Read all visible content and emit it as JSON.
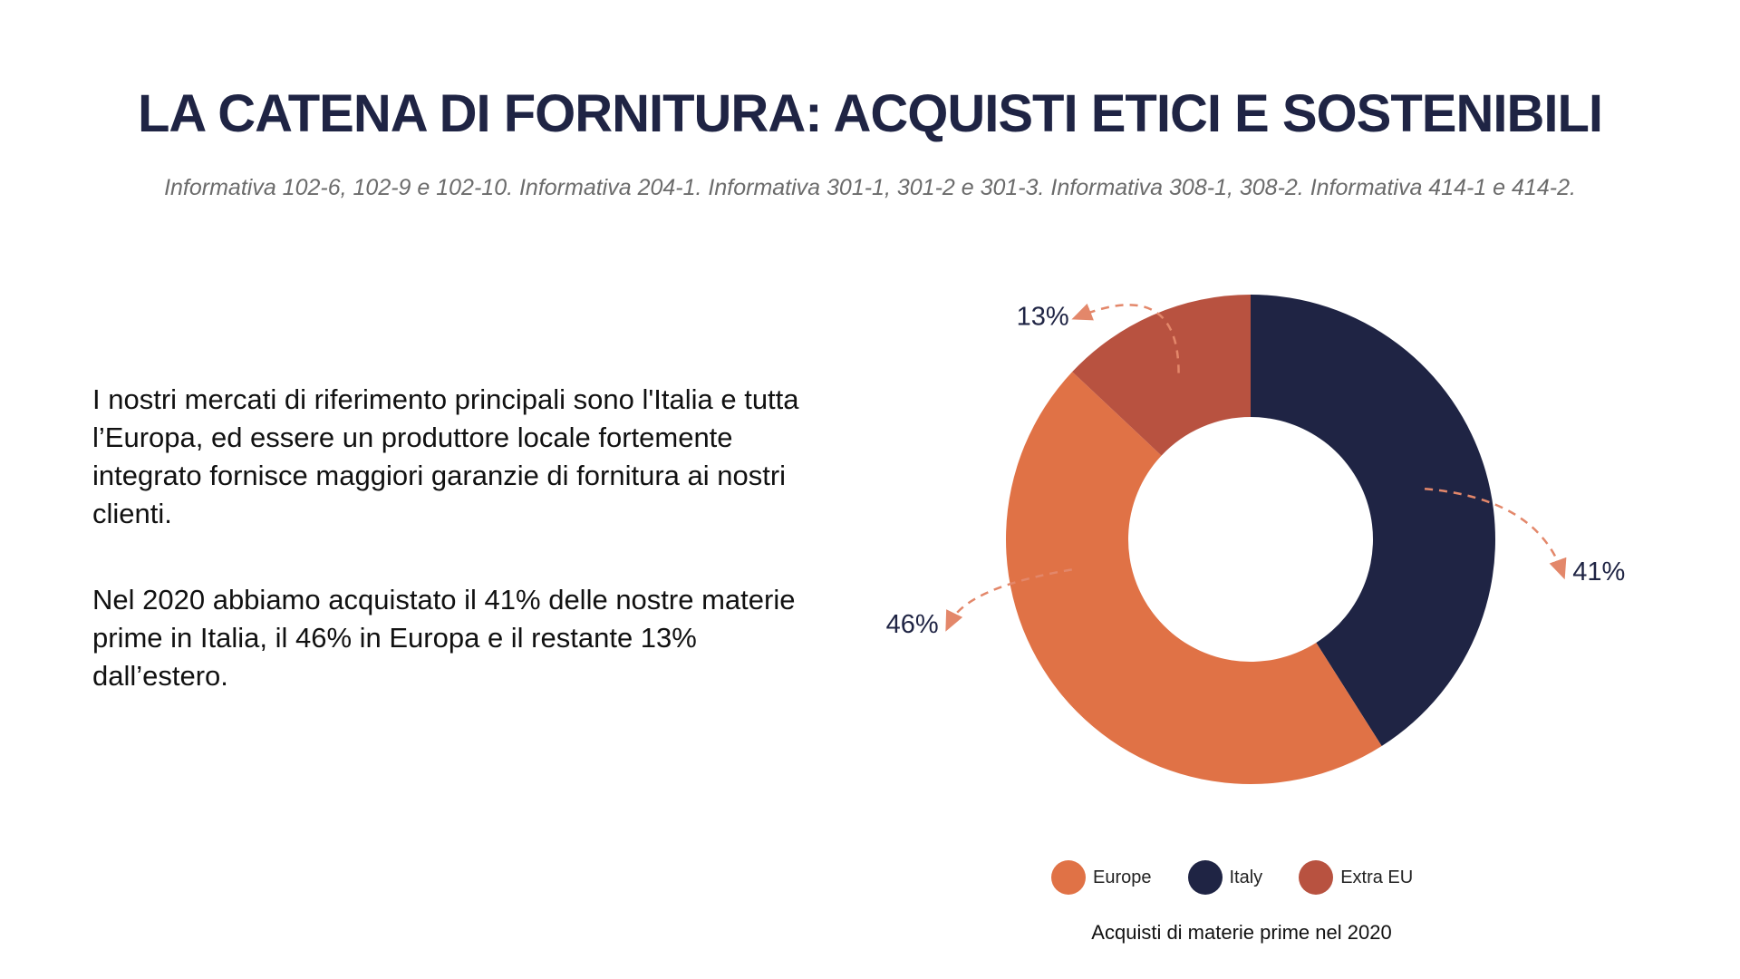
{
  "slide": {
    "title": "LA CATENA DI FORNITURA: ACQUISTI ETICI E SOSTENIBILI",
    "subtitle": "Informativa 102-6, 102-9 e 102-10. Informativa 204-1. Informativa 301-1, 301-2 e 301-3. Informativa 308-1, 308-2. Informativa 414-1 e 414-2.",
    "paragraph_1": "I nostri mercati di riferimento principali sono l'Italia e tutta l’Europa, ed essere un produttore locale fortemente integrato fornisce maggiori garanzie di fornitura ai nostri clienti.",
    "paragraph_2": "Nel 2020 abbiamo acquistato il 41% delle nostre materie prime in Italia, il 46% in Europa e il restante 13% dall’estero."
  },
  "chart_data": {
    "type": "pie",
    "donut": true,
    "title": "",
    "caption": "Acquisti di materie prime nel 2020",
    "categories": [
      "Italy",
      "Europe",
      "Extra EU"
    ],
    "values": [
      41,
      46,
      13
    ],
    "labels": [
      "41%",
      "46%",
      "13%"
    ],
    "colors": [
      "#1f2444",
      "#e07246",
      "#b85240"
    ],
    "legend_placement": "bottom",
    "legend": [
      {
        "name": "Europe",
        "color": "#e07246"
      },
      {
        "name": "Italy",
        "color": "#1f2444"
      },
      {
        "name": "Extra EU",
        "color": "#b85240"
      }
    ],
    "annotation_color": "#e3876a"
  }
}
